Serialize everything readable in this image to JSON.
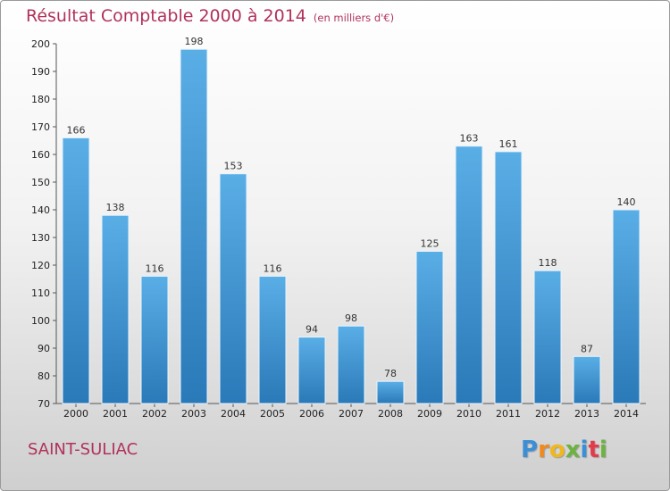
{
  "title": {
    "main": "Résultat Comptable 2000 à 2014",
    "unit": "(en milliers d'€)"
  },
  "footer": {
    "city": "SAINT-SULIAC",
    "logo_letters": [
      "P",
      "r",
      "o",
      "x",
      "i",
      "t",
      "i"
    ]
  },
  "colors": {
    "title": "#b0325a",
    "bar_light": "#5aaee6",
    "bar_dark": "#2a79b8",
    "logo": [
      "#3a8fd6",
      "#ef8a1e",
      "#f0b81c",
      "#6cb33f",
      "#3a8fd6",
      "#e23c4a",
      "#6cb33f"
    ]
  },
  "chart_data": {
    "type": "bar",
    "title": "Résultat Comptable 2000 à 2014",
    "subtitle": "(en milliers d'€)",
    "xlabel": "",
    "ylabel": "",
    "categories": [
      "2000",
      "2001",
      "2002",
      "2003",
      "2004",
      "2005",
      "2006",
      "2007",
      "2008",
      "2009",
      "2010",
      "2011",
      "2012",
      "2013",
      "2014"
    ],
    "values": [
      166,
      138,
      116,
      198,
      153,
      116,
      94,
      98,
      78,
      125,
      163,
      161,
      118,
      87,
      140
    ],
    "ylim": [
      70,
      200
    ],
    "yticks": [
      70,
      80,
      90,
      100,
      110,
      120,
      130,
      140,
      150,
      160,
      170,
      180,
      190,
      200
    ],
    "grid": false,
    "data_labels": true
  }
}
